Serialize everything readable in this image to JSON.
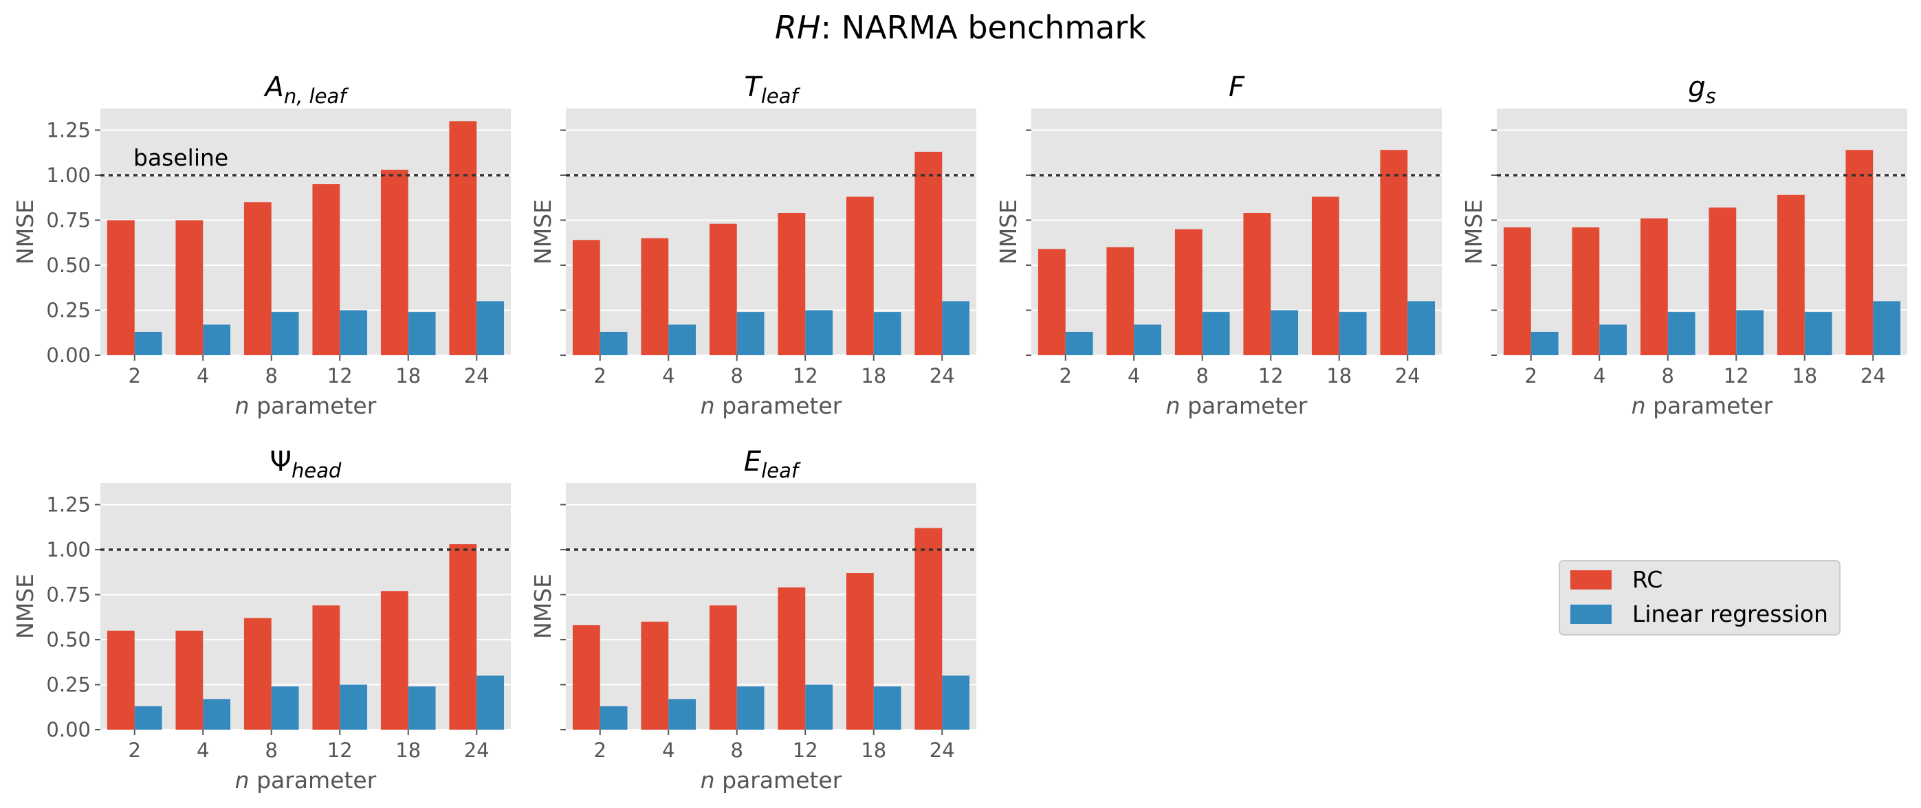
{
  "figure": {
    "title_italic": "RH",
    "title_rest": ": NARMA benchmark"
  },
  "chart_data": {
    "type": "bar",
    "categories": [
      "2",
      "4",
      "8",
      "12",
      "18",
      "24"
    ],
    "xlabel_italic": "n",
    "xlabel_rest": " parameter",
    "ylabel": "NMSE",
    "ylim": [
      0,
      1.37
    ],
    "yticks": [
      "0.00",
      "0.25",
      "0.50",
      "0.75",
      "1.00",
      "1.25"
    ],
    "baseline": {
      "value": 1.0,
      "label": "baseline"
    },
    "grid": true,
    "legend_position": "right of bottom row",
    "colors": {
      "RC": "#E24A33",
      "Linear regression": "#348ABD",
      "panel_bg": "#E5E5E5",
      "grid": "#FFFFFF"
    },
    "panels": [
      {
        "title": {
          "base": "A",
          "sub": "n, leaf"
        },
        "series": [
          {
            "name": "RC",
            "values": [
              0.75,
              0.75,
              0.85,
              0.95,
              1.03,
              1.3
            ]
          },
          {
            "name": "Linear regression",
            "values": [
              0.13,
              0.17,
              0.24,
              0.25,
              0.24,
              0.3
            ]
          }
        ]
      },
      {
        "title": {
          "base": "T",
          "sub": "leaf"
        },
        "series": [
          {
            "name": "RC",
            "values": [
              0.64,
              0.65,
              0.73,
              0.79,
              0.88,
              1.13
            ]
          },
          {
            "name": "Linear regression",
            "values": [
              0.13,
              0.17,
              0.24,
              0.25,
              0.24,
              0.3
            ]
          }
        ]
      },
      {
        "title": {
          "base": "F",
          "sub": ""
        },
        "series": [
          {
            "name": "RC",
            "values": [
              0.59,
              0.6,
              0.7,
              0.79,
              0.88,
              1.14
            ]
          },
          {
            "name": "Linear regression",
            "values": [
              0.13,
              0.17,
              0.24,
              0.25,
              0.24,
              0.3
            ]
          }
        ]
      },
      {
        "title": {
          "base": "g",
          "sub": "s"
        },
        "series": [
          {
            "name": "RC",
            "values": [
              0.71,
              0.71,
              0.76,
              0.82,
              0.89,
              1.14
            ]
          },
          {
            "name": "Linear regression",
            "values": [
              0.13,
              0.17,
              0.24,
              0.25,
              0.24,
              0.3
            ]
          }
        ]
      },
      {
        "title": {
          "base": "Ψ",
          "sub": "head"
        },
        "series": [
          {
            "name": "RC",
            "values": [
              0.55,
              0.55,
              0.62,
              0.69,
              0.77,
              1.03
            ]
          },
          {
            "name": "Linear regression",
            "values": [
              0.13,
              0.17,
              0.24,
              0.25,
              0.24,
              0.3
            ]
          }
        ]
      },
      {
        "title": {
          "base": "E",
          "sub": "leaf"
        },
        "series": [
          {
            "name": "RC",
            "values": [
              0.58,
              0.6,
              0.69,
              0.79,
              0.87,
              1.12
            ]
          },
          {
            "name": "Linear regression",
            "values": [
              0.13,
              0.17,
              0.24,
              0.25,
              0.24,
              0.3
            ]
          }
        ]
      }
    ],
    "legend": [
      "RC",
      "Linear regression"
    ]
  }
}
